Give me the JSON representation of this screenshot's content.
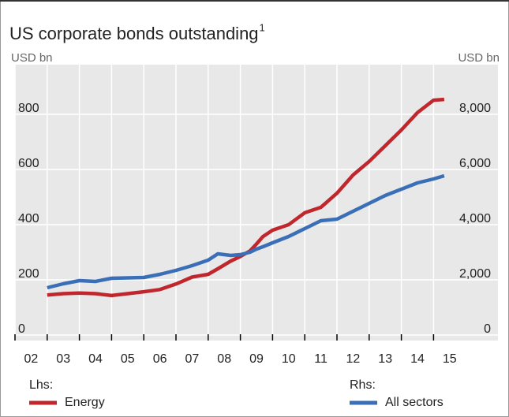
{
  "chart_data": {
    "type": "line",
    "title": "US corporate bonds outstanding",
    "title_note": "1",
    "ylabel": "USD bn",
    "y2label": "USD bn",
    "x": [
      2003,
      2003.5,
      2004,
      2004.5,
      2005,
      2006,
      2006.5,
      2007,
      2007.5,
      2008,
      2008.3,
      2008.7,
      2009,
      2009.3,
      2009.5,
      2009.7,
      2010,
      2010.5,
      2011,
      2011.5,
      2012,
      2012.5,
      2013,
      2013.5,
      2014,
      2014.5,
      2015,
      2015.33
    ],
    "series": [
      {
        "name": "Energy",
        "legend_group": "Lhs:",
        "color": "#c0272d",
        "axis": "y",
        "values": [
          145,
          150,
          152,
          150,
          143,
          157,
          165,
          185,
          210,
          220,
          240,
          268,
          285,
          305,
          330,
          357,
          380,
          400,
          443,
          463,
          514,
          580,
          629,
          686,
          743,
          806,
          851,
          854
        ]
      },
      {
        "name": "All sectors",
        "legend_group": "Rhs:",
        "color": "#3a6fb8",
        "axis": "y2",
        "values": [
          1714,
          1857,
          1971,
          1943,
          2057,
          2086,
          2200,
          2343,
          2514,
          2714,
          2943,
          2886,
          2914,
          3000,
          3114,
          3200,
          3343,
          3571,
          3857,
          4143,
          4200,
          4486,
          4771,
          5057,
          5286,
          5514,
          5657,
          5771
        ]
      }
    ],
    "xlim": [
      2002,
      2017
    ],
    "xticks": [
      {
        "value": 2002,
        "label": "02"
      },
      {
        "value": 2003,
        "label": "03"
      },
      {
        "value": 2004,
        "label": "04"
      },
      {
        "value": 2005,
        "label": "05"
      },
      {
        "value": 2006,
        "label": "06"
      },
      {
        "value": 2007,
        "label": "07"
      },
      {
        "value": 2008,
        "label": "08"
      },
      {
        "value": 2009,
        "label": "09"
      },
      {
        "value": 2010,
        "label": "10"
      },
      {
        "value": 2011,
        "label": "11"
      },
      {
        "value": 2012,
        "label": "12"
      },
      {
        "value": 2013,
        "label": "13"
      },
      {
        "value": 2014,
        "label": "14"
      },
      {
        "value": 2015,
        "label": "15"
      }
    ],
    "ylim": [
      -20,
      980
    ],
    "yticks": [
      0,
      200,
      400,
      600,
      800
    ],
    "y2lim": [
      -200,
      9800
    ],
    "y2ticks": [
      0,
      {
        "value": 2000,
        "label": "2,000"
      },
      {
        "value": 4000,
        "label": "4,000"
      },
      {
        "value": 6000,
        "label": "6,000"
      },
      {
        "value": 8000,
        "label": "8,000"
      }
    ],
    "grid": true
  }
}
